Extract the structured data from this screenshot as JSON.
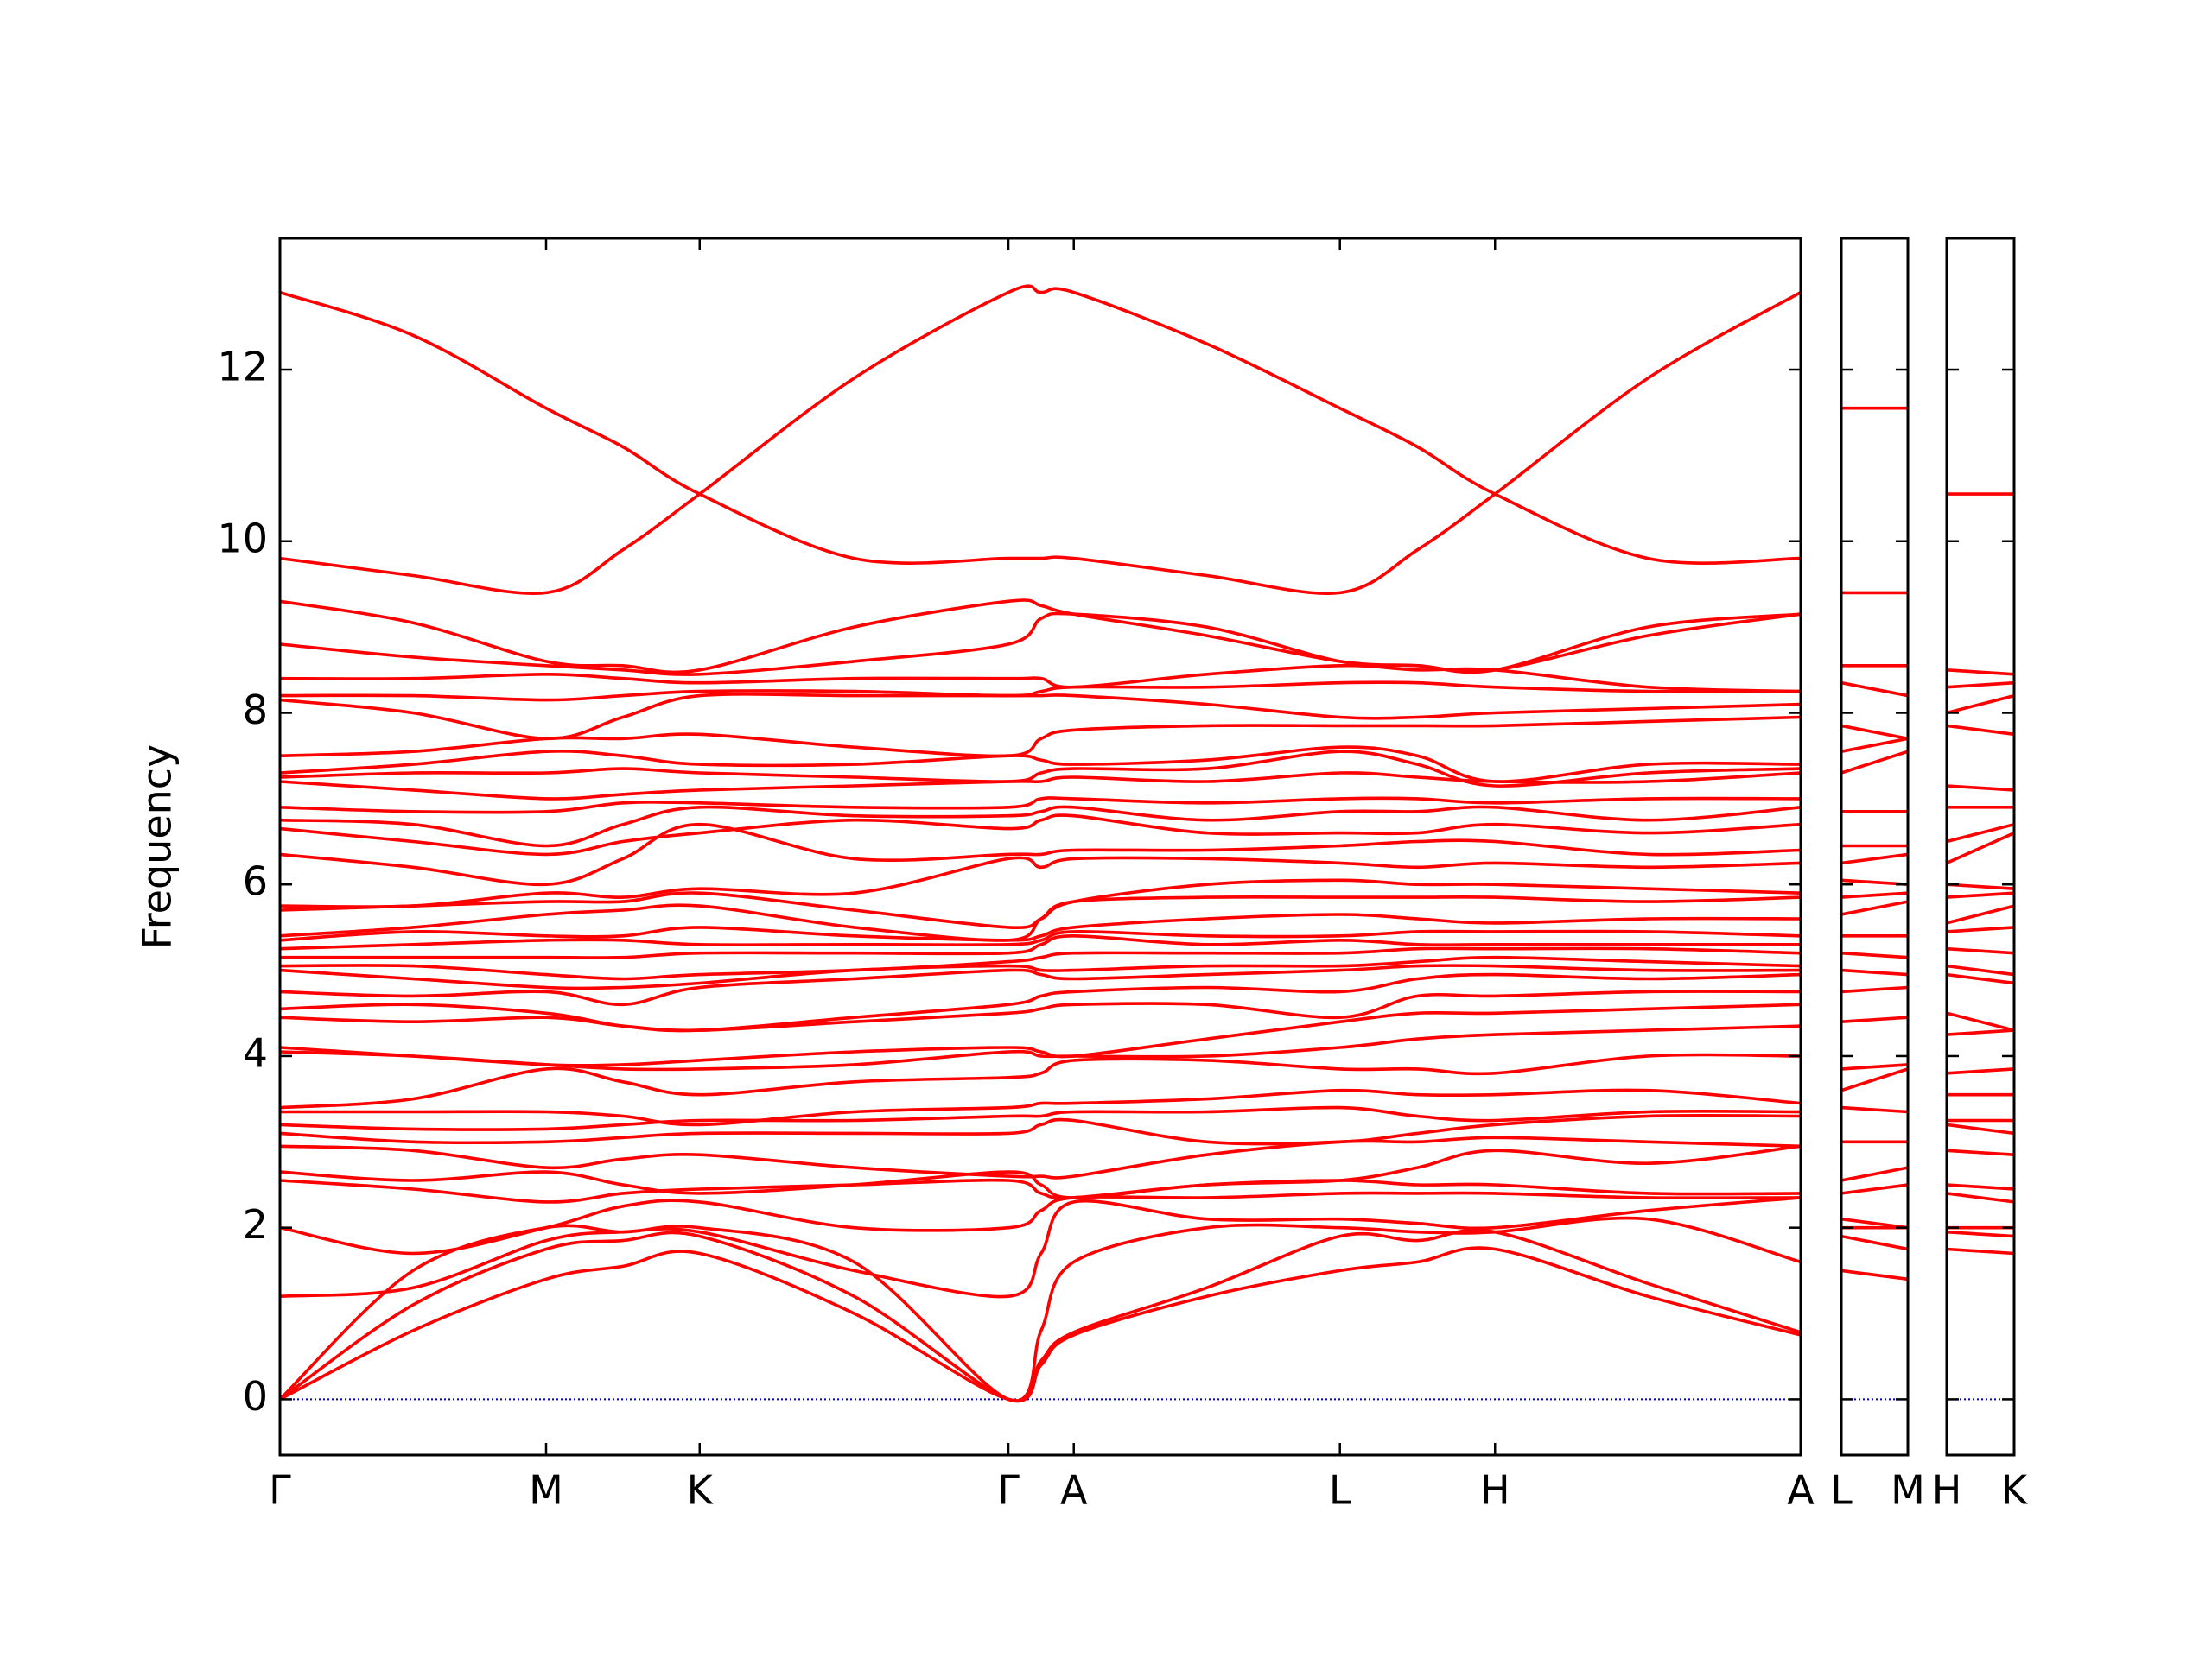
{
  "chart_data": [
    {
      "type": "line",
      "y_label": "Frequency",
      "color": "#ff0000",
      "zero_line_color": "#0000cc",
      "xlim": [
        0,
        1.0
      ],
      "xticks": [
        {
          "value": 0,
          "label": "Γ"
        },
        {
          "value": 0.175,
          "label": "M"
        },
        {
          "value": 0.276,
          "label": "K"
        },
        {
          "value": 0.479,
          "label": "Γ"
        },
        {
          "value": 0.522,
          "label": "A"
        },
        {
          "value": 0.697,
          "label": "L"
        },
        {
          "value": 0.799,
          "label": "H"
        },
        {
          "value": 1.0,
          "label": "A"
        }
      ],
      "ylim": [
        -0.65,
        13.53
      ],
      "yticks": [
        0,
        2,
        4,
        6,
        8,
        10,
        12
      ],
      "x": [
        0,
        0.0875,
        0.175,
        0.2255,
        0.276,
        0.3775,
        0.479,
        0.5005,
        0.522,
        0.6095,
        0.697,
        0.748,
        0.799,
        0.8995,
        1.0
      ],
      "series": [
        {
          "values": [
            12.9,
            12.4,
            11.55,
            11.1,
            10.55,
            9.8,
            9.8,
            9.8,
            9.8,
            9.6,
            9.4,
            9.9,
            10.55,
            11.9,
            12.9
          ]
        },
        {
          "values": [
            9.8,
            9.6,
            9.4,
            9.9,
            10.55,
            11.9,
            12.9,
            12.9,
            12.9,
            12.3,
            11.55,
            11.1,
            10.55,
            9.8,
            9.8
          ]
        },
        {
          "values": [
            0,
            0.8,
            1.4,
            1.55,
            1.7,
            1.0,
            0,
            0.4,
            0.75,
            1.2,
            1.5,
            1.6,
            1.75,
            1.2,
            0.75
          ]
        },
        {
          "values": [
            0,
            1.1,
            1.75,
            1.85,
            1.9,
            1.2,
            0,
            0.45,
            0.78,
            1.3,
            1.9,
            1.85,
            1.95,
            1.35,
            0.78
          ]
        },
        {
          "values": [
            0,
            1.5,
            2.0,
            1.95,
            2.0,
            1.6,
            0,
            0.8,
            1.6,
            2.0,
            2.0,
            1.95,
            1.95,
            2.1,
            1.6
          ]
        },
        {
          "values": [
            1.2,
            1.3,
            1.85,
            1.95,
            1.95,
            1.5,
            1.2,
            1.7,
            2.3,
            2.1,
            2.1,
            2.05,
            2.0,
            2.2,
            2.35
          ]
        },
        {
          "values": [
            2.0,
            1.7,
            2.0,
            2.25,
            2.3,
            2.0,
            2.0,
            2.2,
            2.35,
            2.35,
            2.4,
            2.4,
            2.4,
            2.35,
            2.35
          ]
        },
        {
          "values": [
            2.55,
            2.45,
            2.3,
            2.4,
            2.45,
            2.5,
            2.55,
            2.4,
            2.35,
            2.5,
            2.55,
            2.5,
            2.5,
            2.4,
            2.4
          ]
        },
        {
          "values": [
            2.65,
            2.55,
            2.65,
            2.5,
            2.4,
            2.5,
            2.65,
            2.5,
            2.35,
            2.5,
            2.55,
            2.7,
            2.9,
            2.75,
            2.95
          ]
        },
        {
          "values": [
            2.95,
            2.9,
            2.7,
            2.8,
            2.85,
            2.7,
            2.6,
            2.6,
            2.6,
            2.85,
            3.0,
            3.0,
            3.05,
            3.0,
            2.95
          ]
        },
        {
          "values": [
            3.1,
            3.0,
            3.0,
            3.05,
            3.1,
            3.1,
            3.1,
            3.2,
            3.25,
            3.0,
            3.0,
            3.1,
            3.2,
            3.3,
            3.3
          ]
        },
        {
          "values": [
            3.2,
            3.15,
            3.15,
            3.2,
            3.25,
            3.25,
            3.3,
            3.3,
            3.35,
            3.35,
            3.4,
            3.3,
            3.25,
            3.35,
            3.35
          ]
        },
        {
          "values": [
            3.35,
            3.35,
            3.35,
            3.3,
            3.2,
            3.35,
            3.4,
            3.45,
            3.45,
            3.5,
            3.6,
            3.55,
            3.55,
            3.6,
            3.45
          ]
        },
        {
          "values": [
            3.4,
            3.5,
            3.85,
            3.7,
            3.55,
            3.7,
            3.75,
            3.8,
            3.95,
            3.95,
            3.85,
            3.85,
            3.8,
            4.0,
            4.0
          ]
        },
        {
          "values": [
            4.05,
            4.0,
            3.9,
            3.85,
            3.85,
            3.9,
            4.05,
            4.0,
            4.0,
            4.0,
            4.1,
            4.2,
            4.25,
            4.3,
            4.35
          ]
        },
        {
          "values": [
            4.1,
            4.0,
            3.9,
            3.9,
            3.95,
            4.05,
            4.1,
            4.05,
            4.0,
            4.2,
            4.4,
            4.5,
            4.5,
            4.55,
            4.6
          ]
        },
        {
          "values": [
            4.45,
            4.4,
            4.45,
            4.35,
            4.3,
            4.4,
            4.5,
            4.55,
            4.6,
            4.6,
            4.45,
            4.7,
            4.7,
            4.75,
            4.75
          ]
        },
        {
          "values": [
            4.55,
            4.6,
            4.5,
            4.35,
            4.3,
            4.45,
            4.6,
            4.7,
            4.75,
            4.8,
            4.75,
            4.9,
            4.95,
            4.9,
            4.95
          ]
        },
        {
          "values": [
            4.75,
            4.7,
            4.75,
            4.6,
            4.8,
            4.9,
            5.0,
            4.95,
            4.9,
            4.95,
            5.0,
            5.05,
            5.05,
            5.0,
            5.0
          ]
        },
        {
          "values": [
            5.0,
            4.9,
            4.8,
            4.8,
            4.85,
            5.0,
            5.05,
            5.0,
            5.0,
            5.05,
            5.05,
            5.1,
            5.15,
            5.1,
            5.05
          ]
        },
        {
          "values": [
            5.05,
            5.05,
            4.95,
            4.9,
            4.95,
            5.0,
            5.1,
            5.15,
            5.2,
            5.2,
            5.2,
            5.25,
            5.25,
            5.25,
            5.2
          ]
        },
        {
          "values": [
            5.15,
            5.15,
            5.15,
            5.15,
            5.2,
            5.2,
            5.2,
            5.3,
            5.4,
            5.3,
            5.35,
            5.3,
            5.3,
            5.3,
            5.3
          ]
        },
        {
          "values": [
            5.25,
            5.3,
            5.35,
            5.35,
            5.3,
            5.3,
            5.3,
            5.35,
            5.45,
            5.4,
            5.4,
            5.45,
            5.45,
            5.45,
            5.4
          ]
        },
        {
          "values": [
            5.35,
            5.45,
            5.4,
            5.4,
            5.5,
            5.4,
            5.35,
            5.4,
            5.5,
            5.6,
            5.65,
            5.6,
            5.55,
            5.6,
            5.6
          ]
        },
        {
          "values": [
            5.4,
            5.5,
            5.65,
            5.7,
            5.75,
            5.5,
            5.35,
            5.6,
            5.8,
            5.85,
            5.85,
            5.85,
            5.85,
            5.8,
            5.85
          ]
        },
        {
          "values": [
            5.7,
            5.75,
            5.8,
            5.8,
            5.9,
            5.7,
            5.5,
            5.6,
            5.8,
            6.0,
            6.05,
            6.0,
            6.0,
            5.95,
            5.9
          ]
        },
        {
          "values": [
            5.75,
            5.75,
            5.9,
            5.85,
            5.95,
            5.9,
            6.3,
            6.2,
            6.3,
            6.3,
            6.25,
            6.2,
            6.25,
            6.2,
            6.25
          ]
        },
        {
          "values": [
            6.35,
            6.2,
            6.0,
            6.3,
            6.7,
            6.3,
            6.35,
            6.35,
            6.4,
            6.4,
            6.45,
            6.5,
            6.5,
            6.35,
            6.4
          ]
        },
        {
          "values": [
            6.65,
            6.5,
            6.35,
            6.5,
            6.6,
            6.75,
            6.65,
            6.75,
            6.8,
            6.6,
            6.6,
            6.6,
            6.7,
            6.6,
            6.7
          ]
        },
        {
          "values": [
            6.75,
            6.7,
            6.45,
            6.7,
            6.9,
            6.8,
            6.8,
            6.85,
            6.9,
            6.75,
            6.85,
            6.85,
            6.9,
            6.75,
            6.9
          ]
        },
        {
          "values": [
            6.9,
            6.85,
            6.85,
            6.95,
            6.95,
            6.9,
            6.9,
            7.0,
            7.0,
            6.95,
            7.0,
            7.0,
            6.95,
            7.0,
            7.0
          ]
        },
        {
          "values": [
            7.2,
            7.1,
            7.0,
            7.05,
            7.1,
            7.15,
            7.2,
            7.2,
            7.25,
            7.2,
            7.3,
            7.25,
            7.2,
            7.2,
            7.3
          ]
        },
        {
          "values": [
            7.25,
            7.3,
            7.3,
            7.35,
            7.3,
            7.25,
            7.2,
            7.3,
            7.35,
            7.35,
            7.55,
            7.4,
            7.15,
            7.3,
            7.35
          ]
        },
        {
          "values": [
            7.3,
            7.4,
            7.55,
            7.5,
            7.4,
            7.4,
            7.5,
            7.45,
            7.4,
            7.45,
            7.6,
            7.5,
            7.2,
            7.4,
            7.4
          ]
        },
        {
          "values": [
            7.5,
            7.55,
            7.7,
            7.7,
            7.75,
            7.6,
            7.5,
            7.7,
            7.8,
            7.85,
            7.85,
            7.85,
            7.85,
            7.9,
            7.95
          ]
        },
        {
          "values": [
            8.15,
            8.0,
            7.7,
            7.95,
            8.2,
            8.2,
            8.2,
            8.2,
            8.2,
            8.1,
            7.95,
            7.95,
            8.0,
            8.05,
            8.1
          ]
        },
        {
          "values": [
            8.2,
            8.2,
            8.15,
            8.2,
            8.25,
            8.25,
            8.2,
            8.25,
            8.3,
            8.3,
            8.35,
            8.35,
            8.3,
            8.25,
            8.25
          ]
        },
        {
          "values": [
            8.4,
            8.4,
            8.45,
            8.4,
            8.35,
            8.4,
            8.4,
            8.4,
            8.3,
            8.45,
            8.55,
            8.5,
            8.5,
            8.3,
            8.25
          ]
        },
        {
          "values": [
            8.8,
            8.65,
            8.55,
            8.5,
            8.45,
            8.6,
            8.8,
            9.1,
            9.15,
            9.0,
            8.6,
            8.55,
            8.5,
            9.0,
            9.15
          ]
        },
        {
          "values": [
            9.3,
            9.05,
            8.6,
            8.55,
            8.5,
            9.0,
            9.3,
            9.25,
            9.15,
            8.9,
            8.6,
            8.55,
            8.5,
            8.9,
            9.15
          ]
        }
      ]
    },
    {
      "type": "line",
      "color": "#ff0000",
      "zero_line_color": "#0000cc",
      "show_ytick_labels": false,
      "xlim": [
        0,
        0.044
      ],
      "xticks": [
        {
          "value": 0,
          "label": "L"
        },
        {
          "value": 0.044,
          "label": "M"
        }
      ],
      "ylim": [
        -0.65,
        13.53
      ],
      "yticks": [
        0,
        2,
        4,
        6,
        8,
        10,
        12
      ],
      "x": [
        0,
        0.044
      ],
      "series": [
        {
          "values": [
            1.5,
            1.4
          ]
        },
        {
          "values": [
            1.9,
            1.75
          ]
        },
        {
          "values": [
            2.0,
            2.0
          ]
        },
        {
          "values": [
            2.1,
            2.0
          ]
        },
        {
          "values": [
            2.4,
            2.5
          ]
        },
        {
          "values": [
            2.55,
            2.7
          ]
        },
        {
          "values": [
            3.0,
            3.0
          ]
        },
        {
          "values": [
            3.4,
            3.35
          ]
        },
        {
          "values": [
            3.6,
            3.85
          ]
        },
        {
          "values": [
            3.85,
            3.9
          ]
        },
        {
          "values": [
            4.4,
            4.45
          ]
        },
        {
          "values": [
            4.75,
            4.8
          ]
        },
        {
          "values": [
            5.0,
            4.95
          ]
        },
        {
          "values": [
            5.2,
            5.15
          ]
        },
        {
          "values": [
            5.4,
            5.4
          ]
        },
        {
          "values": [
            5.65,
            5.8
          ]
        },
        {
          "values": [
            5.85,
            5.9
          ]
        },
        {
          "values": [
            6.05,
            6.0
          ]
        },
        {
          "values": [
            6.25,
            6.35
          ]
        },
        {
          "values": [
            6.45,
            6.45
          ]
        },
        {
          "values": [
            6.85,
            6.85
          ]
        },
        {
          "values": [
            7.3,
            7.55
          ]
        },
        {
          "values": [
            7.55,
            7.7
          ]
        },
        {
          "values": [
            7.85,
            7.7
          ]
        },
        {
          "values": [
            8.35,
            8.2
          ]
        },
        {
          "values": [
            8.55,
            8.55
          ]
        },
        {
          "values": [
            9.4,
            9.4
          ]
        },
        {
          "values": [
            11.55,
            11.55
          ]
        }
      ]
    },
    {
      "type": "line",
      "color": "#ff0000",
      "zero_line_color": "#0000cc",
      "show_ytick_labels": false,
      "xlim": [
        0,
        0.044
      ],
      "xticks": [
        {
          "value": 0,
          "label": "H"
        },
        {
          "value": 0.044,
          "label": "K"
        }
      ],
      "ylim": [
        -0.65,
        13.53
      ],
      "yticks": [
        0,
        2,
        4,
        6,
        8,
        10,
        12
      ],
      "x": [
        0,
        0.044
      ],
      "series": [
        {
          "values": [
            1.75,
            1.7
          ]
        },
        {
          "values": [
            1.95,
            1.9
          ]
        },
        {
          "values": [
            2.0,
            2.0
          ]
        },
        {
          "values": [
            2.4,
            2.3
          ]
        },
        {
          "values": [
            2.5,
            2.45
          ]
        },
        {
          "values": [
            2.9,
            2.85
          ]
        },
        {
          "values": [
            3.2,
            3.1
          ]
        },
        {
          "values": [
            3.25,
            3.25
          ]
        },
        {
          "values": [
            3.55,
            3.55
          ]
        },
        {
          "values": [
            3.8,
            3.85
          ]
        },
        {
          "values": [
            4.25,
            4.3
          ]
        },
        {
          "values": [
            4.5,
            4.3
          ]
        },
        {
          "values": [
            4.95,
            4.85
          ]
        },
        {
          "values": [
            5.05,
            4.95
          ]
        },
        {
          "values": [
            5.25,
            5.2
          ]
        },
        {
          "values": [
            5.45,
            5.5
          ]
        },
        {
          "values": [
            5.55,
            5.75
          ]
        },
        {
          "values": [
            5.85,
            5.9
          ]
        },
        {
          "values": [
            6.0,
            5.95
          ]
        },
        {
          "values": [
            6.25,
            6.6
          ]
        },
        {
          "values": [
            6.5,
            6.7
          ]
        },
        {
          "values": [
            6.9,
            6.9
          ]
        },
        {
          "values": [
            7.15,
            7.1
          ]
        },
        {
          "values": [
            7.85,
            7.75
          ]
        },
        {
          "values": [
            8.0,
            8.2
          ]
        },
        {
          "values": [
            8.3,
            8.35
          ]
        },
        {
          "values": [
            8.5,
            8.45
          ]
        },
        {
          "values": [
            10.55,
            10.55
          ]
        }
      ]
    }
  ]
}
